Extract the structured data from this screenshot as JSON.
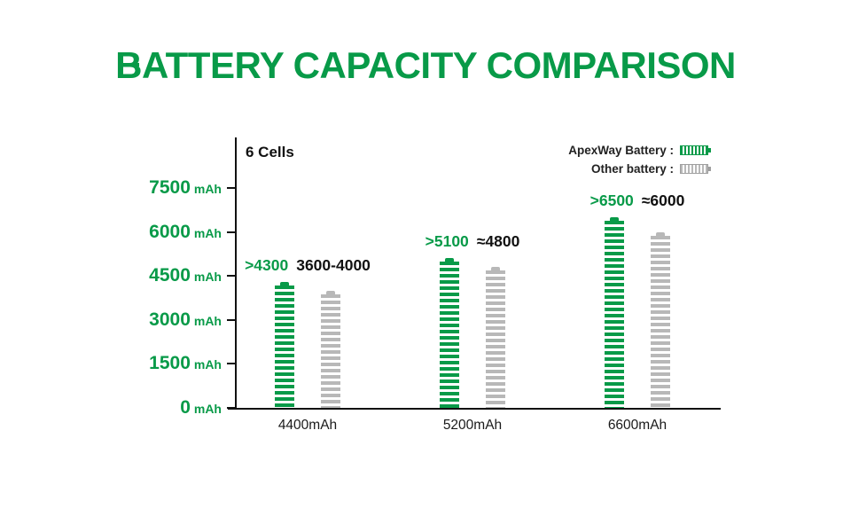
{
  "title": "BATTERY CAPACITY COMPARISON",
  "colors": {
    "brand_green": "#089a48",
    "other_gray": "#b8b8b8",
    "axis_black": "#111111"
  },
  "chart_data": {
    "type": "bar",
    "title": "BATTERY CAPACITY COMPARISON",
    "annotation": "6 Cells",
    "unit": "mAh",
    "ylim": [
      0,
      7500
    ],
    "y_ticks": [
      7500,
      6000,
      4500,
      3000,
      1500,
      0
    ],
    "grid": false,
    "legend_position": "top-right",
    "categories": [
      "4400mAh",
      "5200mAh",
      "6600mAh"
    ],
    "series": [
      {
        "name": "ApexWay Battery",
        "color": "#089a48",
        "values": [
          4300,
          5100,
          6500
        ],
        "point_labels": [
          ">4300",
          ">5100",
          ">6500"
        ]
      },
      {
        "name": "Other battery",
        "color": "#b8b8b8",
        "values": [
          4000,
          4800,
          6000
        ],
        "point_labels": [
          "3600-4000",
          "≈4800",
          "≈6000"
        ]
      }
    ],
    "legend": [
      {
        "label": "ApexWay Battery :"
      },
      {
        "label": "Other battery :"
      }
    ]
  }
}
